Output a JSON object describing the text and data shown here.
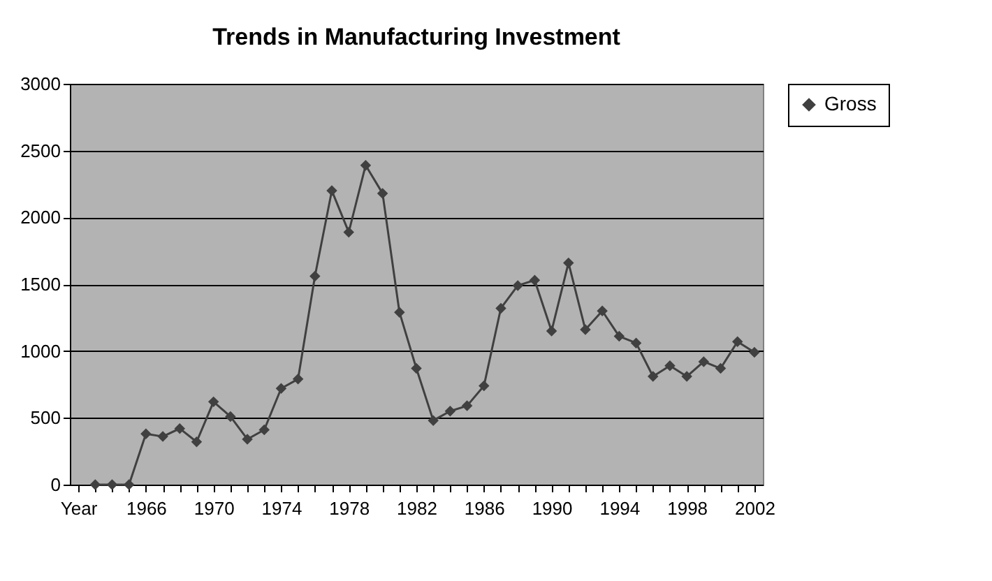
{
  "chart_data": {
    "type": "line",
    "title": "Trends in Manufacturing Investment",
    "categories": [
      "Year",
      null,
      null,
      null,
      "1966",
      null,
      null,
      null,
      "1970",
      null,
      null,
      null,
      "1974",
      null,
      null,
      null,
      "1978",
      null,
      null,
      null,
      "1982",
      null,
      null,
      null,
      "1986",
      null,
      null,
      null,
      "1990",
      null,
      null,
      null,
      "1994",
      null,
      null,
      null,
      "1998",
      null,
      null,
      null,
      "2002"
    ],
    "series": [
      {
        "name": "Gross",
        "color": "#404040",
        "values": [
          null,
          0,
          0,
          0,
          380,
          360,
          420,
          320,
          620,
          510,
          340,
          410,
          720,
          790,
          1560,
          2200,
          1890,
          2390,
          2180,
          1290,
          870,
          480,
          550,
          590,
          740,
          1320,
          1490,
          1530,
          1150,
          1660,
          1160,
          1300,
          1110,
          1060,
          810,
          890,
          810,
          920,
          870,
          1070,
          990
        ]
      }
    ],
    "ylim": [
      0,
      3000
    ],
    "yticks": [
      0,
      500,
      1000,
      1500,
      2000,
      2500,
      3000
    ],
    "grid": "y",
    "legend": "right",
    "marker": "diamond",
    "line_style": "solid"
  }
}
